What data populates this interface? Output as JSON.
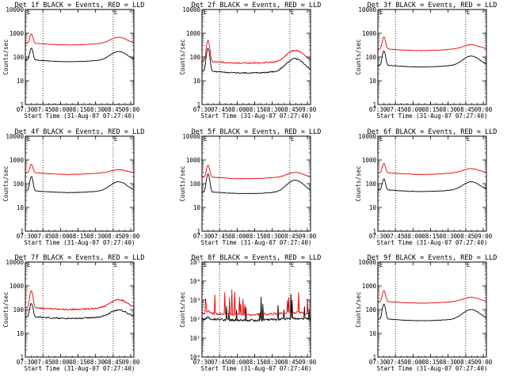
{
  "figure": {
    "background": "#ffffff",
    "colors": {
      "black_series": "#000000",
      "red_series": "#ee0000"
    }
  },
  "chart_data": [
    {
      "type": "line",
      "title": "Det 1f BLACK = Events, RED = LLD",
      "marker": "E",
      "ylabel": "Counts/sec",
      "xlabel": "Start Time (31-Aug-07 07:27:40)",
      "yscale": "log",
      "ylim": [
        1,
        10000
      ],
      "ytick_labels": [
        "1",
        "10",
        "100",
        "1000",
        "10000"
      ],
      "x_tick_labels": [
        "07:30",
        "07:45",
        "08:00",
        "08:15",
        "08:30",
        "08:45",
        "09:00"
      ],
      "xlim_min": [
        2.33,
        95
      ],
      "vlines_min": [
        17.33,
        77.33
      ],
      "noise": 0.015,
      "series": [
        {
          "color": "#000000",
          "base": 75,
          "pk1": 240,
          "pk2": 170,
          "x": [],
          "y": []
        },
        {
          "color": "#ee0000",
          "base": 380,
          "pk1": 950,
          "pk2": 680,
          "x": [],
          "y": []
        }
      ]
    },
    {
      "type": "line",
      "title": "Det 2f BLACK = Events, RED = LLD",
      "marker": "E",
      "ylabel": "Counts/sec",
      "xlabel": "Start Time (31-Aug-07 07:27:40)",
      "yscale": "log",
      "ylim": [
        1,
        10000
      ],
      "ytick_labels": [
        "1",
        "10",
        "100",
        "1000",
        "10000"
      ],
      "x_tick_labels": [
        "07:30",
        "07:45",
        "08:00",
        "08:15",
        "08:30",
        "08:45",
        "09:00"
      ],
      "xlim_min": [
        2.33,
        95
      ],
      "vlines_min": [
        17.33,
        77.33
      ],
      "noise": 0.05,
      "series": [
        {
          "color": "#000000",
          "base": 25,
          "pk1": 230,
          "pk2": 85,
          "x": [],
          "y": []
        },
        {
          "color": "#ee0000",
          "base": 65,
          "pk1": 500,
          "pk2": 190,
          "x": [],
          "y": []
        }
      ]
    },
    {
      "type": "line",
      "title": "Det 3f BLACK = Events, RED = LLD",
      "marker": "E",
      "ylabel": "Counts/sec",
      "xlabel": "Start Time (31-Aug-07 07:27:40)",
      "yscale": "log",
      "ylim": [
        1,
        10000
      ],
      "ytick_labels": [
        "1",
        "10",
        "100",
        "1000",
        "10000"
      ],
      "x_tick_labels": [
        "07:30",
        "07:45",
        "08:00",
        "08:15",
        "08:30",
        "08:45",
        "09:00"
      ],
      "xlim_min": [
        2.33,
        95
      ],
      "vlines_min": [
        17.33,
        77.33
      ],
      "noise": 0.02,
      "series": [
        {
          "color": "#000000",
          "base": 45,
          "pk1": 180,
          "pk2": 110,
          "x": [],
          "y": []
        },
        {
          "color": "#ee0000",
          "base": 220,
          "pk1": 700,
          "pk2": 330,
          "x": [],
          "y": []
        }
      ]
    },
    {
      "type": "line",
      "title": "Det 4f BLACK = Events, RED = LLD",
      "marker": "E",
      "ylabel": "Counts/sec",
      "xlabel": "Start Time (31-Aug-07 07:27:40)",
      "yscale": "log",
      "ylim": [
        1,
        10000
      ],
      "ytick_labels": [
        "1",
        "10",
        "100",
        "1000",
        "10000"
      ],
      "x_tick_labels": [
        "07:30",
        "07:45",
        "08:00",
        "08:15",
        "08:30",
        "08:45",
        "09:00"
      ],
      "xlim_min": [
        2.33,
        95
      ],
      "vlines_min": [
        17.33,
        77.33
      ],
      "noise": 0.02,
      "series": [
        {
          "color": "#000000",
          "base": 50,
          "pk1": 200,
          "pk2": 120,
          "x": [],
          "y": []
        },
        {
          "color": "#ee0000",
          "base": 290,
          "pk1": 650,
          "pk2": 390,
          "x": [],
          "y": []
        }
      ]
    },
    {
      "type": "line",
      "title": "Det 5f BLACK = Events, RED = LLD",
      "marker": "E",
      "ylabel": "Counts/sec",
      "xlabel": "Start Time (31-Aug-07 07:27:40)",
      "yscale": "log",
      "ylim": [
        1,
        10000
      ],
      "ytick_labels": [
        "1",
        "10",
        "100",
        "1000",
        "10000"
      ],
      "x_tick_labels": [
        "07:30",
        "07:45",
        "08:00",
        "08:15",
        "08:30",
        "08:45",
        "09:00"
      ],
      "xlim_min": [
        2.33,
        95
      ],
      "vlines_min": [
        17.33,
        77.33
      ],
      "noise": 0.02,
      "series": [
        {
          "color": "#000000",
          "base": 45,
          "pk1": 260,
          "pk2": 140,
          "x": [],
          "y": []
        },
        {
          "color": "#ee0000",
          "base": 190,
          "pk1": 600,
          "pk2": 300,
          "x": [],
          "y": []
        }
      ]
    },
    {
      "type": "line",
      "title": "Det 6f BLACK = Events, RED = LLD",
      "marker": "E",
      "ylabel": "Counts/sec",
      "xlabel": "Start Time (31-Aug-07 07:27:40)",
      "yscale": "log",
      "ylim": [
        1,
        10000
      ],
      "ytick_labels": [
        "1",
        "10",
        "100",
        "1000",
        "10000"
      ],
      "x_tick_labels": [
        "07:30",
        "07:45",
        "08:00",
        "08:15",
        "08:30",
        "08:45",
        "09:00"
      ],
      "xlim_min": [
        2.33,
        95
      ],
      "vlines_min": [
        17.33,
        77.33
      ],
      "noise": 0.02,
      "series": [
        {
          "color": "#000000",
          "base": 55,
          "pk1": 160,
          "pk2": 120,
          "x": [],
          "y": []
        },
        {
          "color": "#ee0000",
          "base": 290,
          "pk1": 700,
          "pk2": 430,
          "x": [],
          "y": []
        }
      ]
    },
    {
      "type": "line",
      "title": "Det 7f BLACK = Events, RED = LLD",
      "marker": "E",
      "ylabel": "Counts/sec",
      "xlabel": "Start Time (31-Aug-07 07:27:40)",
      "yscale": "log",
      "ylim": [
        1,
        10000
      ],
      "ytick_labels": [
        "1",
        "10",
        "100",
        "1000",
        "10000"
      ],
      "x_tick_labels": [
        "07:30",
        "07:45",
        "08:00",
        "08:15",
        "08:30",
        "08:45",
        "09:00"
      ],
      "xlim_min": [
        2.33,
        95
      ],
      "vlines_min": [
        17.33,
        77.33
      ],
      "noise": 0.06,
      "series": [
        {
          "color": "#000000",
          "base": 50,
          "pk1": 180,
          "pk2": 95,
          "x": [],
          "y": []
        },
        {
          "color": "#ee0000",
          "base": 120,
          "pk1": 600,
          "pk2": 260,
          "x": [],
          "y": []
        }
      ]
    },
    {
      "type": "line",
      "title": "Det 8f BLACK = Events, RED = LLD",
      "marker": "E",
      "ylabel": "Counts/sec",
      "xlabel": "Start Time (31-Aug-07 07:27:40)",
      "yscale": "log",
      "ylim": [
        1,
        100000
      ],
      "ytick_labels": [
        "10⁰",
        "10¹",
        "10²",
        "10³",
        "10⁴",
        "10⁵"
      ],
      "x_tick_labels": [
        "07:30",
        "07:45",
        "08:00",
        "08:15",
        "08:30",
        "08:45",
        "09:00"
      ],
      "xlim_min": [
        2.33,
        95
      ],
      "vlines_min": [
        17.33,
        77.33
      ],
      "noise": 0.12,
      "spiky": true,
      "series": [
        {
          "color": "#000000",
          "base": 100,
          "pk1": 130,
          "pk2": 110,
          "x": [],
          "y": []
        },
        {
          "color": "#ee0000",
          "base": 200,
          "pk1": 260,
          "pk2": 220,
          "x": [],
          "y": []
        }
      ]
    },
    {
      "type": "line",
      "title": "Det 9f BLACK = Events, RED = LLD",
      "marker": "E",
      "ylabel": "Counts/sec",
      "xlabel": "Start Time (31-Aug-07 07:27:40)",
      "yscale": "log",
      "ylim": [
        1,
        10000
      ],
      "ytick_labels": [
        "1",
        "10",
        "100",
        "1000",
        "10000"
      ],
      "x_tick_labels": [
        "07:30",
        "07:45",
        "08:00",
        "08:15",
        "08:30",
        "08:45",
        "09:00"
      ],
      "xlim_min": [
        2.33,
        95
      ],
      "vlines_min": [
        17.33,
        77.33
      ],
      "noise": 0.02,
      "series": [
        {
          "color": "#000000",
          "base": 40,
          "pk1": 170,
          "pk2": 100,
          "x": [],
          "y": []
        },
        {
          "color": "#ee0000",
          "base": 220,
          "pk1": 650,
          "pk2": 330,
          "x": [],
          "y": []
        }
      ]
    }
  ]
}
